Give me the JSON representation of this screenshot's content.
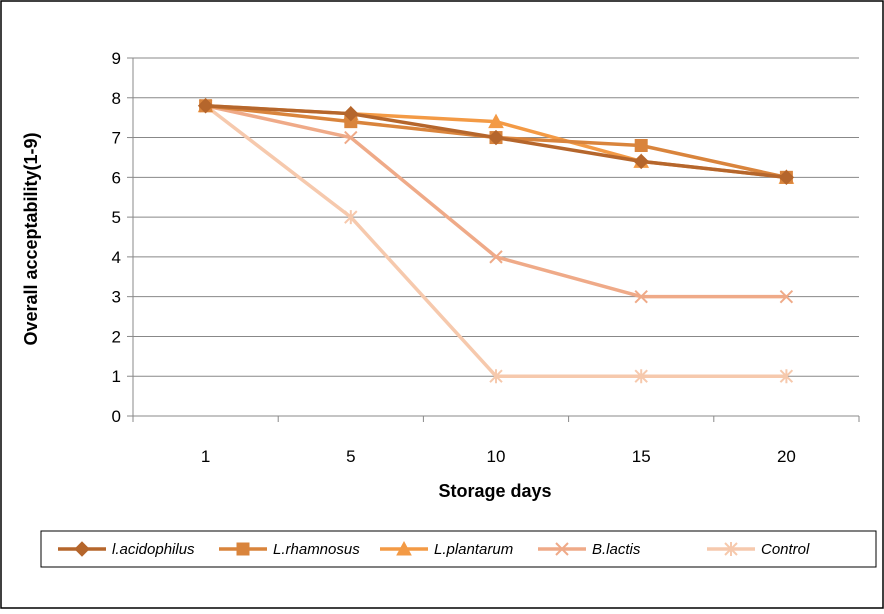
{
  "chart_data": {
    "type": "line",
    "xlabel": "Storage days",
    "ylabel": "Overall acceptability(1-9)",
    "categories": [
      "1",
      "5",
      "10",
      "15",
      "20"
    ],
    "ylim": [
      0,
      9
    ],
    "yticks": [
      "0",
      "1",
      "2",
      "3",
      "4",
      "5",
      "6",
      "7",
      "8",
      "9"
    ],
    "grid": "horizontal",
    "legend_position": "bottom",
    "series": [
      {
        "name": "l.acidophilus",
        "marker": "diamond",
        "color": "#B5662C",
        "values": [
          7.8,
          7.6,
          7.0,
          6.4,
          6.0
        ]
      },
      {
        "name": "L.rhamnosus",
        "marker": "square",
        "color": "#D9843C",
        "values": [
          7.8,
          7.4,
          7.0,
          6.8,
          6.0
        ]
      },
      {
        "name": "L.plantarum",
        "marker": "triangle",
        "color": "#F39A45",
        "values": [
          7.8,
          7.6,
          7.4,
          6.4,
          6.0
        ]
      },
      {
        "name": "B.lactis",
        "marker": "x",
        "color": "#EFAA88",
        "values": [
          7.8,
          7.0,
          4.0,
          3.0,
          3.0
        ]
      },
      {
        "name": "Control",
        "marker": "star",
        "color": "#F6C9AD",
        "values": [
          7.8,
          5.0,
          1.0,
          1.0,
          1.0
        ]
      }
    ]
  }
}
